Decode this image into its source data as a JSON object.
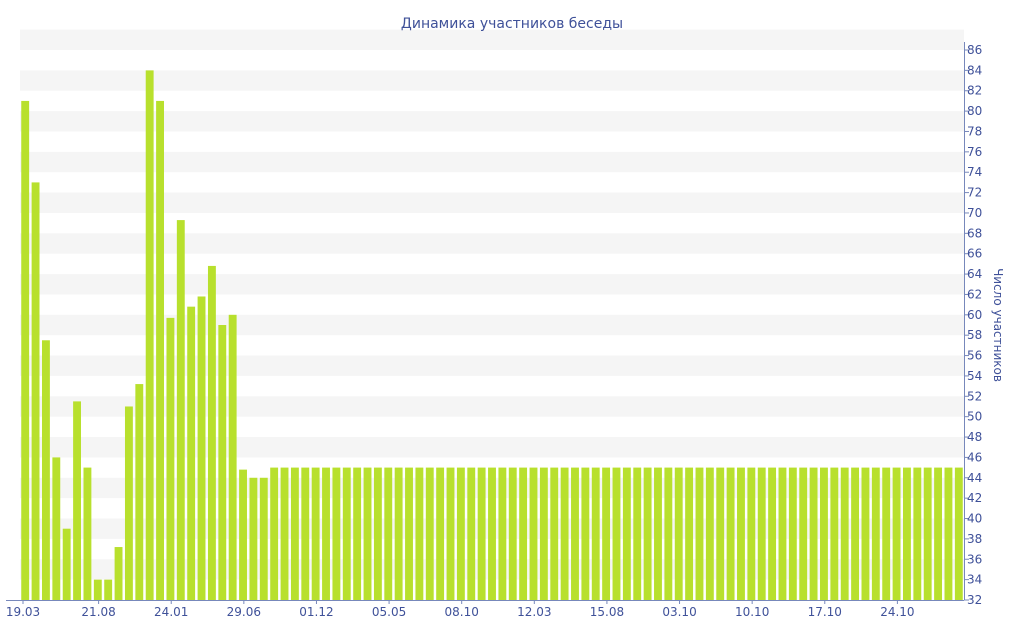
{
  "chart_data": {
    "type": "bar",
    "title": "Динамика участников беседы",
    "ylabel": "Число участников",
    "xlabel": "",
    "ylim": [
      32,
      86
    ],
    "y_ticks": [
      32,
      34,
      36,
      38,
      40,
      42,
      44,
      46,
      48,
      50,
      52,
      54,
      56,
      58,
      60,
      62,
      64,
      66,
      68,
      70,
      72,
      74,
      76,
      78,
      80,
      82,
      84,
      86
    ],
    "x_tick_labels": [
      "19.03",
      "21.08",
      "24.01",
      "29.06",
      "01.12",
      "05.05",
      "08.10",
      "12.03",
      "15.08",
      "03.10",
      "10.10",
      "17.10",
      "24.10"
    ],
    "bar_color": "#b8e02d",
    "grid": "alternating horizontal bands",
    "y_axis_position": "right",
    "values": [
      81,
      73,
      57.5,
      46,
      39,
      51.5,
      45,
      34,
      34,
      37.2,
      51,
      53.2,
      84,
      81,
      59.7,
      69.3,
      60.8,
      61.8,
      64.8,
      59,
      60,
      44.8,
      44,
      44,
      45,
      45,
      45,
      45,
      45,
      45,
      45,
      45,
      45,
      45,
      45,
      45,
      45,
      45,
      45,
      45,
      45,
      45,
      45,
      45,
      45,
      45,
      45,
      45,
      45,
      45,
      45,
      45,
      45,
      45,
      45,
      45,
      45,
      45,
      45,
      45,
      45,
      45,
      45,
      45,
      45,
      45,
      45,
      45,
      45,
      45,
      45,
      45,
      45,
      45,
      45,
      45,
      45,
      45,
      45,
      45,
      45,
      45,
      45,
      45,
      45,
      45,
      45,
      45,
      45,
      45,
      45
    ]
  }
}
